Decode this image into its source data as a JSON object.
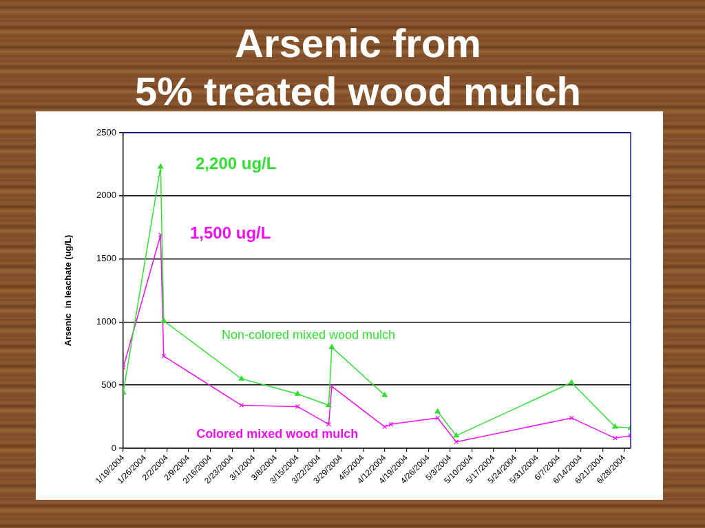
{
  "chart_data": {
    "type": "line",
    "title": "Arsenic from\n5% treated wood mulch",
    "ylabel": "Arsenic  in leachate (ug/L)",
    "x": [
      "2004-01-19",
      "2004-01-31",
      "2004-02-01",
      "2004-02-26",
      "2004-03-15",
      "2004-03-25",
      "2004-03-26",
      "2004-04-12",
      "2004-04-14",
      "2004-04-29",
      "2004-05-05",
      "2004-06-11",
      "2004-06-25",
      "2004-06-30"
    ],
    "series": [
      {
        "name": "Non-colored mixed wood mulch",
        "color": "#33dd33",
        "marker": "triangle",
        "values": [
          440,
          2230,
          1010,
          550,
          430,
          340,
          800,
          420,
          null,
          290,
          100,
          520,
          170,
          160
        ]
      },
      {
        "name": "Colored mixed wood mulch",
        "color": "#ee11ee",
        "marker": "cross",
        "values": [
          640,
          1690,
          730,
          340,
          330,
          190,
          490,
          170,
          190,
          240,
          50,
          240,
          80,
          100
        ]
      }
    ],
    "xlim": [
      "2004-01-19",
      "2004-06-30"
    ],
    "xticks": [
      {
        "value": "2004-01-19",
        "label": "1/19/2004"
      },
      {
        "value": "2004-01-26",
        "label": "1/26/2004"
      },
      {
        "value": "2004-02-02",
        "label": "2/2/2004"
      },
      {
        "value": "2004-02-09",
        "label": "2/9/2004"
      },
      {
        "value": "2004-02-16",
        "label": "2/16/2004"
      },
      {
        "value": "2004-02-23",
        "label": "2/23/2004"
      },
      {
        "value": "2004-03-01",
        "label": "3/1/2004"
      },
      {
        "value": "2004-03-08",
        "label": "3/8/2004"
      },
      {
        "value": "2004-03-15",
        "label": "3/15/2004"
      },
      {
        "value": "2004-03-22",
        "label": "3/22/2004"
      },
      {
        "value": "2004-03-29",
        "label": "3/29/2004"
      },
      {
        "value": "2004-04-05",
        "label": "4/5/2004"
      },
      {
        "value": "2004-04-12",
        "label": "4/12/2004"
      },
      {
        "value": "2004-04-19",
        "label": "4/19/2004"
      },
      {
        "value": "2004-04-26",
        "label": "4/26/2004"
      },
      {
        "value": "2004-05-03",
        "label": "5/3/2004"
      },
      {
        "value": "2004-05-10",
        "label": "5/10/2004"
      },
      {
        "value": "2004-05-17",
        "label": "5/17/2004"
      },
      {
        "value": "2004-05-24",
        "label": "5/24/2004"
      },
      {
        "value": "2004-05-31",
        "label": "5/31/2004"
      },
      {
        "value": "2004-06-07",
        "label": "6/7/2004"
      },
      {
        "value": "2004-06-14",
        "label": "6/14/2004"
      },
      {
        "value": "2004-06-21",
        "label": "6/21/2004"
      },
      {
        "value": "2004-06-28",
        "label": "6/28/2004"
      }
    ],
    "ylim": [
      0,
      2500
    ],
    "yticks": [
      0,
      500,
      1000,
      1500,
      2000,
      2500
    ],
    "grid": "y",
    "annotations": [
      "2,200 ug/L",
      "1,500 ug/L"
    ]
  }
}
